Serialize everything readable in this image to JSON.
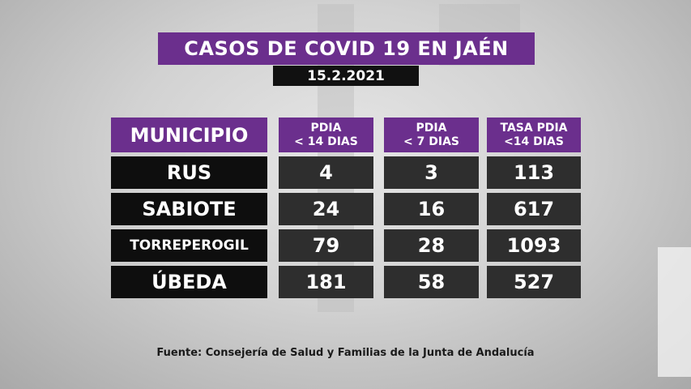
{
  "title": "CASOS DE COVID 19 EN JAÉN",
  "date": "15.2.2021",
  "table": {
    "headers": {
      "municipio": "MUNICIPIO",
      "pdia14_line1": "PDIA",
      "pdia14_line2": "< 14 DIAS",
      "pdia7_line1": "PDIA",
      "pdia7_line2": "< 7 DIAS",
      "tasa_line1": "TASA PDIA",
      "tasa_line2": "<14 DIAS"
    },
    "rows": [
      {
        "municipio": "RUS",
        "pdia14": "4",
        "pdia7": "3",
        "tasa": "113"
      },
      {
        "municipio": "SABIOTE",
        "pdia14": "24",
        "pdia7": "16",
        "tasa": "617"
      },
      {
        "municipio": "TORREPEROGIL",
        "pdia14": "79",
        "pdia7": "28",
        "tasa": "1093"
      },
      {
        "municipio": "ÚBEDA",
        "pdia14": "181",
        "pdia7": "58",
        "tasa": "527"
      }
    ]
  },
  "source": "Fuente: Consejería de Salud y Familias de la Junta de Andalucía",
  "colors": {
    "header": "#6b2f8d",
    "name_cell": "#0e0e0e",
    "value_cell": "#2e2e2e"
  }
}
